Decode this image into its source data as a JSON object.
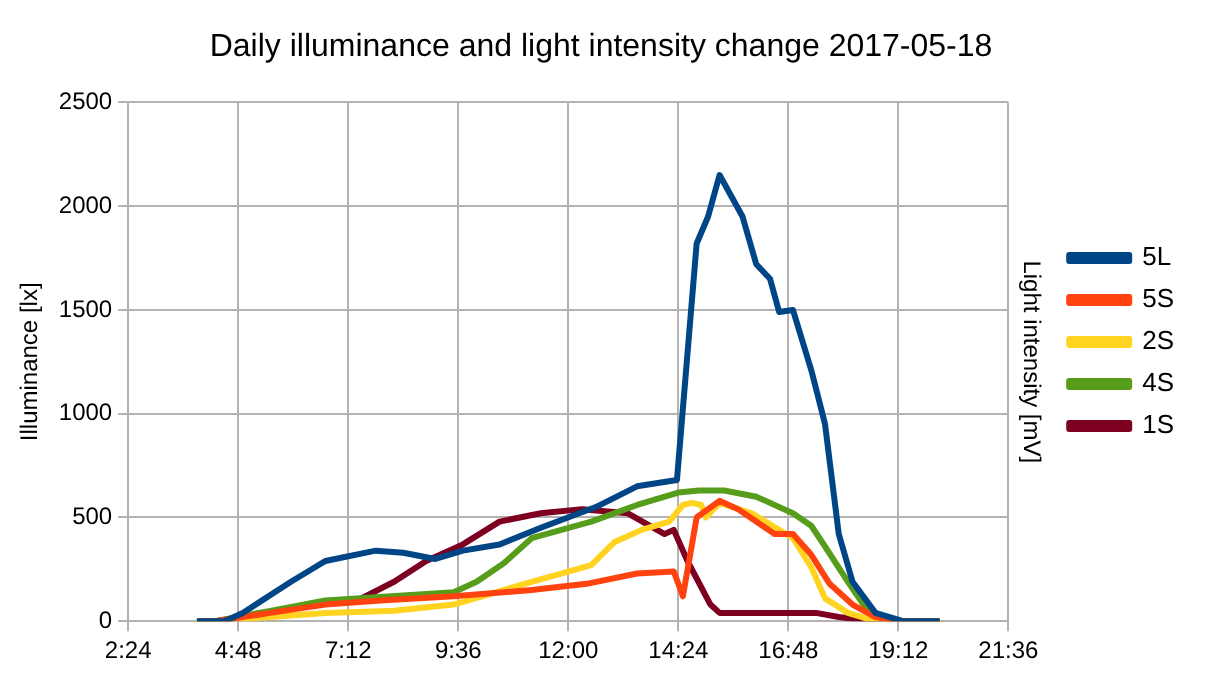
{
  "chart_data": {
    "type": "line",
    "title": "Daily illuminance and light intensity change 2017-05-18",
    "ylabel": "Illuminance [lx]",
    "y2label": "Light intensity [mV]",
    "xlim": [
      2.4,
      21.6
    ],
    "xticks": [
      {
        "value": 2.4,
        "label": "2:24"
      },
      {
        "value": 4.8,
        "label": "4:48"
      },
      {
        "value": 7.2,
        "label": "7:12"
      },
      {
        "value": 9.6,
        "label": "9:36"
      },
      {
        "value": 12,
        "label": "12:00"
      },
      {
        "value": 14.4,
        "label": "14:24"
      },
      {
        "value": 16.8,
        "label": "16:48"
      },
      {
        "value": 19.2,
        "label": "19:12"
      },
      {
        "value": 21.6,
        "label": "21:36"
      }
    ],
    "ylim": [
      0,
      2500
    ],
    "yticks": [
      0,
      500,
      1000,
      1500,
      2000,
      2500
    ],
    "grid": true,
    "legend": "right",
    "marker": "none",
    "line_style": "solid",
    "series": [
      {
        "name": "5L",
        "color": "#004586",
        "x": [
          3.9,
          4.5,
          4.9,
          5.95,
          6.7,
          7.8,
          8.4,
          9.1,
          9.7,
          10.5,
          11.4,
          12.6,
          13.5,
          14.37,
          14.8,
          15.05,
          15.3,
          15.8,
          16.1,
          16.4,
          16.6,
          16.9,
          17.3,
          17.6,
          17.9,
          18.2,
          18.7,
          19.3,
          20.1
        ],
        "values": [
          0,
          0,
          40,
          190,
          290,
          340,
          330,
          300,
          340,
          370,
          450,
          550,
          650,
          680,
          1820,
          1950,
          2150,
          1950,
          1720,
          1650,
          1490,
          1500,
          1210,
          950,
          420,
          190,
          40,
          0,
          0
        ]
      },
      {
        "name": "5S",
        "color": "#ff420e",
        "x": [
          3.9,
          4.3,
          5.5,
          6.7,
          7.9,
          9.5,
          11.2,
          12.4,
          13.5,
          14.3,
          14.5,
          14.8,
          15.3,
          15.7,
          16.1,
          16.5,
          16.9,
          17.3,
          17.7,
          18.2,
          18.7,
          19.3,
          20.1
        ],
        "values": [
          0,
          0,
          40,
          80,
          100,
          120,
          150,
          180,
          230,
          240,
          120,
          500,
          580,
          540,
          480,
          420,
          420,
          320,
          180,
          80,
          20,
          0,
          0
        ]
      },
      {
        "name": "2S",
        "color": "#ffd320",
        "x": [
          3.9,
          4.3,
          5.5,
          6.7,
          8.2,
          9.5,
          11.2,
          12.5,
          13.0,
          13.6,
          14.2,
          14.5,
          14.7,
          14.9,
          15.0,
          15.3,
          16.0,
          16.6,
          16.9,
          17.3,
          17.6,
          18.1,
          18.7,
          19.3,
          20.1
        ],
        "values": [
          0,
          0,
          20,
          40,
          50,
          80,
          190,
          270,
          380,
          440,
          480,
          560,
          570,
          560,
          500,
          570,
          520,
          440,
          400,
          260,
          110,
          40,
          0,
          0,
          0
        ]
      },
      {
        "name": "4S",
        "color": "#579d1c",
        "x": [
          3.9,
          4.3,
          5.5,
          6.7,
          9.5,
          10.0,
          10.6,
          11.2,
          12.5,
          13.5,
          14.4,
          14.85,
          15.4,
          16.1,
          16.9,
          17.3,
          17.6,
          18.1,
          18.5,
          19.1,
          20.1
        ],
        "values": [
          0,
          0,
          50,
          100,
          140,
          190,
          280,
          400,
          480,
          560,
          620,
          630,
          630,
          600,
          520,
          460,
          360,
          190,
          60,
          0,
          0
        ]
      },
      {
        "name": "1S",
        "color": "#7e0021",
        "x": [
          3.9,
          4.3,
          5.5,
          6.7,
          7.4,
          8.2,
          8.9,
          9.7,
          10.5,
          11.4,
          12.3,
          13.3,
          14.1,
          14.3,
          14.6,
          15.1,
          15.3,
          16.3,
          16.9,
          17.4,
          17.9,
          18.3,
          19.3,
          20.1
        ],
        "values": [
          0,
          0,
          40,
          90,
          100,
          190,
          290,
          370,
          480,
          520,
          540,
          520,
          420,
          440,
          290,
          80,
          40,
          40,
          40,
          40,
          20,
          10,
          0,
          0
        ]
      }
    ]
  }
}
